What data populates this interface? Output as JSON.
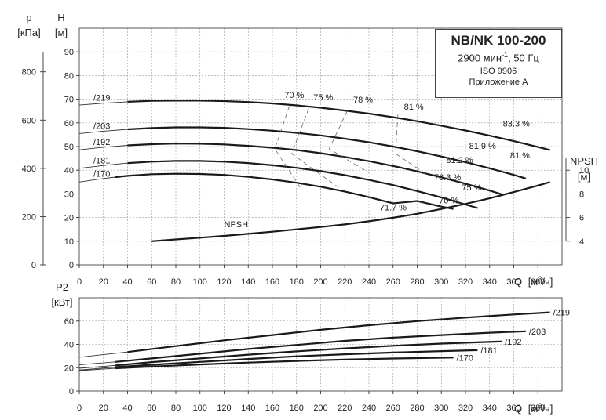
{
  "info_box": {
    "model": "NB/NK 100-200",
    "speed_prefix": "2900 мин",
    "speed_exp": "-1",
    "speed_suffix": ", 50 Гц",
    "standard": "ISO 9906",
    "annex": "Приложение А"
  },
  "chart_data": [
    {
      "id": "head",
      "type": "line",
      "axes": {
        "x": {
          "label_main": "Q",
          "label_unit": "[м",
          "label_exp": "3",
          "label_end": "/ч]",
          "lim": [
            0,
            400
          ],
          "ticks": [
            0,
            20,
            40,
            60,
            80,
            100,
            120,
            140,
            160,
            180,
            200,
            220,
            240,
            260,
            280,
            300,
            320,
            340,
            360,
            380
          ]
        },
        "y_left": {
          "label": "H",
          "unit": "[м]",
          "lim": [
            0,
            100
          ],
          "ticks": [
            0,
            10,
            20,
            30,
            40,
            50,
            60,
            70,
            80,
            90
          ]
        },
        "y_pressure": {
          "label": "p",
          "unit": "[кПа]",
          "ticks": [
            0,
            200,
            400,
            600,
            800
          ]
        },
        "y_right": {
          "label": "NPSH",
          "unit": "[м]",
          "ticks": [
            4,
            6,
            8,
            10
          ],
          "lim": [
            4,
            10
          ]
        }
      },
      "grid": true,
      "series": [
        {
          "name": "/219",
          "type": "head",
          "range": [
            40,
            310
          ],
          "x": [
            0,
            20,
            40,
            60,
            80,
            100,
            120,
            140,
            160,
            180,
            200,
            220,
            240,
            260,
            280,
            300,
            320,
            340,
            360,
            380,
            390
          ],
          "y": [
            67.5,
            68.3,
            68.9,
            69.3,
            69.4,
            69.4,
            69.2,
            68.8,
            68.2,
            67.4,
            66.4,
            65.2,
            63.9,
            62.4,
            60.7,
            58.8,
            56.8,
            54.6,
            52.3,
            49.8,
            48.5
          ]
        },
        {
          "name": "/203",
          "type": "head",
          "range": [
            40,
            310
          ],
          "x": [
            0,
            20,
            40,
            60,
            80,
            100,
            120,
            140,
            160,
            180,
            200,
            220,
            240,
            260,
            280,
            300,
            320,
            340,
            360,
            370
          ],
          "y": [
            55.5,
            56.5,
            57.3,
            57.8,
            58.1,
            58.1,
            57.9,
            57.4,
            56.7,
            55.8,
            54.7,
            53.3,
            51.8,
            50.0,
            48.0,
            45.8,
            43.4,
            40.8,
            38.0,
            36.5
          ]
        },
        {
          "name": "/192",
          "type": "head",
          "range": [
            40,
            310
          ],
          "x": [
            0,
            20,
            40,
            60,
            80,
            100,
            120,
            140,
            160,
            180,
            200,
            220,
            240,
            260,
            280,
            300,
            320,
            340,
            350
          ],
          "y": [
            48.6,
            49.7,
            50.5,
            51.0,
            51.3,
            51.2,
            50.9,
            50.3,
            49.5,
            48.5,
            47.2,
            45.6,
            43.8,
            41.8,
            39.5,
            37.0,
            34.3,
            31.4,
            29.8
          ]
        },
        {
          "name": "/181",
          "type": "head",
          "range": [
            40,
            310
          ],
          "x": [
            0,
            20,
            40,
            60,
            80,
            100,
            120,
            140,
            160,
            180,
            200,
            220,
            240,
            260,
            280,
            300,
            320,
            330
          ],
          "y": [
            40.8,
            42.0,
            43.0,
            43.6,
            43.9,
            43.9,
            43.6,
            43.0,
            42.1,
            41.0,
            39.6,
            37.9,
            35.9,
            33.7,
            31.2,
            28.5,
            25.5,
            24.0
          ]
        },
        {
          "name": "/170",
          "type": "head",
          "range": [
            40,
            310
          ],
          "x": [
            0,
            20,
            30,
            40,
            60,
            80,
            100,
            120,
            140,
            160,
            180,
            200,
            220,
            240,
            260,
            280,
            300,
            310
          ],
          "y": [
            35.0,
            36.5,
            37.1,
            37.6,
            38.3,
            38.5,
            38.4,
            38.0,
            37.2,
            36.1,
            34.7,
            33.0,
            31.0,
            28.6,
            26.0,
            27.0,
            24.6,
            23.6
          ]
        },
        {
          "name": "NPSH",
          "type": "npsh",
          "range": [
            60,
            390
          ],
          "x": [
            60,
            80,
            100,
            120,
            140,
            160,
            180,
            200,
            220,
            240,
            260,
            280,
            300,
            320,
            340,
            360,
            380,
            390
          ],
          "y": [
            4.0,
            4.15,
            4.3,
            4.45,
            4.62,
            4.8,
            5.0,
            5.2,
            5.42,
            5.68,
            5.98,
            6.32,
            6.72,
            7.15,
            7.62,
            8.15,
            8.7,
            9.0
          ]
        }
      ],
      "efficiency_lines": [
        {
          "label": "70 %",
          "x": [
            174,
            162
          ],
          "y": [
            67.0,
            49.0
          ],
          "x2": [
            162,
            184
          ],
          "y2": [
            49.0,
            32.0
          ]
        },
        {
          "label": "75 %",
          "x": [
            190,
            176
          ],
          "y": [
            66.0,
            47.0
          ],
          "x2": [
            176,
            214
          ],
          "y2": [
            47.0,
            33.0
          ]
        },
        {
          "label": "78 %",
          "x": [
            222,
            207
          ],
          "y": [
            65.0,
            49.0
          ],
          "x2": [
            207,
            240
          ],
          "y2": [
            49.0,
            39.0
          ]
        },
        {
          "label": "81 %",
          "x": [
            264,
            262
          ],
          "y": [
            63.5,
            47.0
          ],
          "x2": [
            262,
            290
          ],
          "y2": [
            47.0,
            37.5
          ]
        }
      ],
      "efficiency_labels": [
        {
          "label": "70 %",
          "x": 170,
          "y": 70.5
        },
        {
          "label": "75 %",
          "x": 194,
          "y": 69.5
        },
        {
          "label": "78 %",
          "x": 227,
          "y": 68.5
        },
        {
          "label": "81 %",
          "x": 269,
          "y": 65.5
        },
        {
          "label": "83.3 %",
          "x": 351,
          "y": 58.5
        },
        {
          "label": "81.9 %",
          "x": 323,
          "y": 49.0
        },
        {
          "label": "81.2 %",
          "x": 304,
          "y": 43.0
        },
        {
          "label": "81 %",
          "x": 357,
          "y": 45.0
        },
        {
          "label": "76.3 %",
          "x": 294,
          "y": 35.8
        },
        {
          "label": "75 %",
          "x": 317,
          "y": 31.5
        },
        {
          "label": "70 %",
          "x": 298,
          "y": 26.0
        },
        {
          "label": "71.7 %",
          "x": 249,
          "y": 23.0
        }
      ]
    },
    {
      "id": "power",
      "type": "line",
      "axes": {
        "x": {
          "label_main": "Q",
          "label_unit": "[м",
          "label_exp": "3",
          "label_end": "/ч]",
          "lim": [
            0,
            400
          ],
          "ticks": [
            0,
            20,
            40,
            60,
            80,
            100,
            120,
            140,
            160,
            180,
            200,
            220,
            240,
            260,
            280,
            300,
            320,
            340,
            360,
            380
          ]
        },
        "y_left": {
          "label": "P2",
          "unit": "[кВт]",
          "lim": [
            0,
            80
          ],
          "ticks": [
            0,
            20,
            40,
            60
          ]
        }
      },
      "grid": true,
      "series": [
        {
          "name": "/219",
          "range": [
            40,
            390
          ],
          "x": [
            0,
            40,
            80,
            120,
            160,
            200,
            240,
            280,
            320,
            360,
            390
          ],
          "y": [
            29.0,
            33.5,
            38.5,
            43.5,
            48.0,
            52.5,
            56.5,
            60.0,
            63.0,
            65.7,
            67.5
          ]
        },
        {
          "name": "/203",
          "range": [
            30,
            370
          ],
          "x": [
            0,
            30,
            60,
            100,
            140,
            180,
            220,
            260,
            300,
            340,
            370
          ],
          "y": [
            22.5,
            25.0,
            28.0,
            32.0,
            36.0,
            39.5,
            43.0,
            45.8,
            48.0,
            50.0,
            51.2
          ]
        },
        {
          "name": "/192",
          "range": [
            30,
            350
          ],
          "x": [
            0,
            30,
            60,
            100,
            140,
            180,
            220,
            260,
            300,
            350
          ],
          "y": [
            19.5,
            22.0,
            24.8,
            28.0,
            31.2,
            34.0,
            36.6,
            38.8,
            40.7,
            42.5
          ]
        },
        {
          "name": "/181",
          "range": [
            30,
            330
          ],
          "x": [
            0,
            30,
            60,
            100,
            140,
            180,
            220,
            260,
            300,
            330
          ],
          "y": [
            18.0,
            20.5,
            22.5,
            25.0,
            27.5,
            29.8,
            31.5,
            33.0,
            34.2,
            35.0
          ]
        },
        {
          "name": "/170",
          "range": [
            30,
            310
          ],
          "x": [
            0,
            30,
            60,
            100,
            140,
            180,
            220,
            260,
            310
          ],
          "y": [
            17.5,
            19.5,
            21.0,
            22.8,
            24.4,
            25.8,
            27.0,
            27.9,
            28.7
          ]
        }
      ]
    }
  ]
}
